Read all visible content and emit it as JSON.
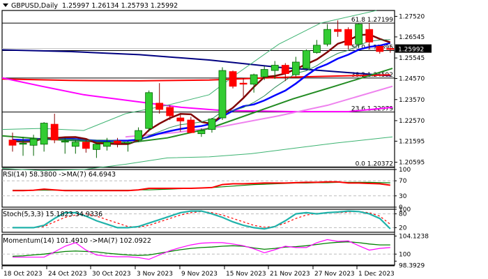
{
  "header": {
    "symbol": "GBPUSD,Daily",
    "ohlc": "1.25997 1.26134 1.25793 1.25992"
  },
  "panels": {
    "rsi": {
      "label": "RSI(14) 58.3800  ->MA(7) 64.6943"
    },
    "stoch": {
      "label": "Stoch(5,3,3) 15.1823 34.9336"
    },
    "momentum": {
      "label": "Momentum(14) 101.4910  ->MA(7) 102.0922"
    }
  },
  "colors": {
    "bull": "#33cc33",
    "bear": "#ff0000",
    "sma_navy": "#000080",
    "sma_red": "#ff0000",
    "sma_magenta": "#ff00ff",
    "sma_violet": "#ee82ee",
    "ema_blue": "#0000ff",
    "ema_maroon": "#800000",
    "ema_green": "#228b22",
    "bollinger": "#3cb371",
    "stoch_main": "#20b2aa",
    "momentum": "#ff00ff"
  },
  "chart_data": {
    "type": "candlestick",
    "title": "GBPUSD,Daily",
    "price_axis": {
      "ticks": [
        "1.27520",
        "1.26545",
        "1.25545",
        "1.24570",
        "1.23570",
        "1.22570",
        "1.21595",
        "1.20595"
      ],
      "current_price": "1.25992",
      "ylim": [
        1.2035,
        1.278
      ]
    },
    "fibonacci": [
      {
        "level": "61.8",
        "price": "1.27199"
      },
      {
        "level": "50.0",
        "price": "1.25895"
      },
      {
        "level": "38.2",
        "price": "1.24592"
      },
      {
        "level": "23.6",
        "price": "1.22979"
      },
      {
        "level": "0.0",
        "price": "1.20372"
      }
    ],
    "x_axis_labels": [
      "18 Oct 2023",
      "24 Oct 2023",
      "30 Oct 2023",
      "3 Nov 2023",
      "9 Nov 2023",
      "15 Nov 2023",
      "21 Nov 2023",
      "27 Nov 2023",
      "1 Dec 2023"
    ],
    "candles": [
      {
        "o": 1.2165,
        "h": 1.22,
        "l": 1.211,
        "c": 1.214
      },
      {
        "o": 1.215,
        "h": 1.218,
        "l": 1.209,
        "c": 1.215
      },
      {
        "o": 1.214,
        "h": 1.219,
        "l": 1.209,
        "c": 1.217
      },
      {
        "o": 1.2145,
        "h": 1.225,
        "l": 1.211,
        "c": 1.2245
      },
      {
        "o": 1.224,
        "h": 1.229,
        "l": 1.215,
        "c": 1.2165
      },
      {
        "o": 1.2155,
        "h": 1.2175,
        "l": 1.21,
        "c": 1.216
      },
      {
        "o": 1.2135,
        "h": 1.2165,
        "l": 1.21,
        "c": 1.2155
      },
      {
        "o": 1.2155,
        "h": 1.2165,
        "l": 1.2105,
        "c": 1.2125
      },
      {
        "o": 1.212,
        "h": 1.215,
        "l": 1.208,
        "c": 1.2145
      },
      {
        "o": 1.2135,
        "h": 1.2175,
        "l": 1.2115,
        "c": 1.2155
      },
      {
        "o": 1.216,
        "h": 1.2175,
        "l": 1.213,
        "c": 1.215
      },
      {
        "o": 1.215,
        "h": 1.216,
        "l": 1.211,
        "c": 1.2155
      },
      {
        "o": 1.2165,
        "h": 1.2225,
        "l": 1.2155,
        "c": 1.221
      },
      {
        "o": 1.222,
        "h": 1.24,
        "l": 1.2205,
        "c": 1.239
      },
      {
        "o": 1.234,
        "h": 1.2435,
        "l": 1.229,
        "c": 1.231
      },
      {
        "o": 1.232,
        "h": 1.233,
        "l": 1.226,
        "c": 1.228
      },
      {
        "o": 1.227,
        "h": 1.229,
        "l": 1.2205,
        "c": 1.2255
      },
      {
        "o": 1.226,
        "h": 1.2275,
        "l": 1.2215,
        "c": 1.22
      },
      {
        "o": 1.2195,
        "h": 1.222,
        "l": 1.218,
        "c": 1.221
      },
      {
        "o": 1.2215,
        "h": 1.227,
        "l": 1.22,
        "c": 1.2265
      },
      {
        "o": 1.227,
        "h": 1.251,
        "l": 1.226,
        "c": 1.2495
      },
      {
        "o": 1.249,
        "h": 1.2495,
        "l": 1.241,
        "c": 1.242
      },
      {
        "o": 1.2435,
        "h": 1.246,
        "l": 1.237,
        "c": 1.243
      },
      {
        "o": 1.243,
        "h": 1.248,
        "l": 1.239,
        "c": 1.2475
      },
      {
        "o": 1.2465,
        "h": 1.2515,
        "l": 1.245,
        "c": 1.25
      },
      {
        "o": 1.2495,
        "h": 1.254,
        "l": 1.2455,
        "c": 1.252
      },
      {
        "o": 1.252,
        "h": 1.253,
        "l": 1.2445,
        "c": 1.248
      },
      {
        "o": 1.2475,
        "h": 1.256,
        "l": 1.2465,
        "c": 1.2535
      },
      {
        "o": 1.2505,
        "h": 1.2595,
        "l": 1.2505,
        "c": 1.259
      },
      {
        "o": 1.258,
        "h": 1.264,
        "l": 1.2575,
        "c": 1.2615
      },
      {
        "o": 1.262,
        "h": 1.2715,
        "l": 1.261,
        "c": 1.269
      },
      {
        "o": 1.269,
        "h": 1.2733,
        "l": 1.2655,
        "c": 1.268
      },
      {
        "o": 1.269,
        "h": 1.27,
        "l": 1.2595,
        "c": 1.2615
      },
      {
        "o": 1.262,
        "h": 1.2718,
        "l": 1.2605,
        "c": 1.2715
      },
      {
        "o": 1.269,
        "h": 1.272,
        "l": 1.2595,
        "c": 1.263
      },
      {
        "o": 1.261,
        "h": 1.2615,
        "l": 1.2575,
        "c": 1.2585
      },
      {
        "o": 1.25997,
        "h": 1.26134,
        "l": 1.25793,
        "c": 1.25992
      }
    ],
    "indicators": {
      "rsi": {
        "period": 14,
        "value": 58.38,
        "ma_period": 7,
        "ma_value": 64.6943,
        "levels": [
          70,
          30
        ],
        "scale": [
          "100",
          "70",
          "30",
          "0"
        ]
      },
      "stochastic": {
        "params": "5,3,3",
        "main": 15.1823,
        "signal": 34.9336,
        "levels": [
          80,
          20
        ],
        "scale": [
          "100",
          "80",
          "20",
          "0"
        ]
      },
      "momentum": {
        "period": 14,
        "value": 101.491,
        "ma_period": 7,
        "ma_value": 102.0922,
        "scale": [
          "104.1238",
          "100",
          "98.3929"
        ]
      }
    }
  }
}
